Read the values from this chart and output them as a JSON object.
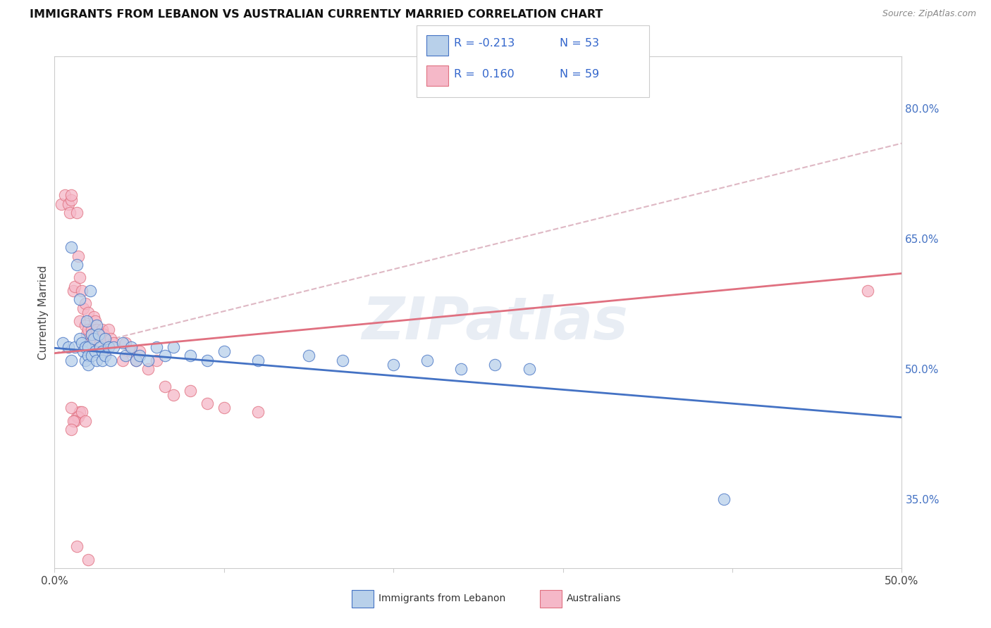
{
  "title": "IMMIGRANTS FROM LEBANON VS AUSTRALIAN CURRENTLY MARRIED CORRELATION CHART",
  "source": "Source: ZipAtlas.com",
  "ylabel": "Currently Married",
  "right_yticks": [
    "80.0%",
    "65.0%",
    "50.0%",
    "35.0%"
  ],
  "right_ytick_vals": [
    0.8,
    0.65,
    0.5,
    0.35
  ],
  "xlim": [
    0.0,
    0.5
  ],
  "ylim": [
    0.27,
    0.86
  ],
  "color_blue": "#b8d0ea",
  "color_pink": "#f5b8c8",
  "color_blue_line": "#4472c4",
  "color_pink_line": "#e07080",
  "watermark": "ZIPatlas",
  "blue_scatter_x": [
    0.005,
    0.008,
    0.01,
    0.01,
    0.012,
    0.013,
    0.015,
    0.015,
    0.016,
    0.017,
    0.018,
    0.018,
    0.019,
    0.02,
    0.02,
    0.02,
    0.021,
    0.022,
    0.022,
    0.023,
    0.024,
    0.025,
    0.025,
    0.026,
    0.027,
    0.028,
    0.028,
    0.03,
    0.03,
    0.032,
    0.033,
    0.035,
    0.04,
    0.042,
    0.045,
    0.048,
    0.05,
    0.055,
    0.06,
    0.065,
    0.07,
    0.08,
    0.09,
    0.1,
    0.12,
    0.15,
    0.17,
    0.2,
    0.22,
    0.24,
    0.26,
    0.395,
    0.28
  ],
  "blue_scatter_y": [
    0.53,
    0.525,
    0.64,
    0.51,
    0.525,
    0.62,
    0.58,
    0.535,
    0.53,
    0.52,
    0.525,
    0.51,
    0.555,
    0.525,
    0.515,
    0.505,
    0.59,
    0.54,
    0.515,
    0.535,
    0.52,
    0.55,
    0.51,
    0.54,
    0.525,
    0.52,
    0.51,
    0.535,
    0.515,
    0.525,
    0.51,
    0.525,
    0.53,
    0.515,
    0.525,
    0.51,
    0.515,
    0.51,
    0.525,
    0.515,
    0.525,
    0.515,
    0.51,
    0.52,
    0.51,
    0.515,
    0.51,
    0.505,
    0.51,
    0.5,
    0.505,
    0.35,
    0.5
  ],
  "pink_scatter_x": [
    0.004,
    0.006,
    0.008,
    0.009,
    0.01,
    0.01,
    0.011,
    0.012,
    0.013,
    0.014,
    0.015,
    0.015,
    0.016,
    0.017,
    0.018,
    0.018,
    0.019,
    0.02,
    0.02,
    0.021,
    0.022,
    0.022,
    0.023,
    0.024,
    0.025,
    0.026,
    0.027,
    0.028,
    0.029,
    0.03,
    0.03,
    0.032,
    0.033,
    0.035,
    0.04,
    0.042,
    0.045,
    0.048,
    0.05,
    0.055,
    0.06,
    0.065,
    0.07,
    0.08,
    0.09,
    0.1,
    0.12,
    0.015,
    0.013,
    0.01,
    0.014,
    0.012,
    0.016,
    0.018,
    0.011,
    0.01,
    0.013,
    0.02,
    0.48
  ],
  "pink_scatter_y": [
    0.69,
    0.7,
    0.69,
    0.68,
    0.695,
    0.7,
    0.59,
    0.595,
    0.68,
    0.63,
    0.605,
    0.555,
    0.59,
    0.57,
    0.55,
    0.575,
    0.54,
    0.565,
    0.545,
    0.53,
    0.545,
    0.54,
    0.56,
    0.555,
    0.545,
    0.54,
    0.53,
    0.545,
    0.54,
    0.535,
    0.52,
    0.545,
    0.535,
    0.53,
    0.51,
    0.53,
    0.52,
    0.51,
    0.52,
    0.5,
    0.51,
    0.48,
    0.47,
    0.475,
    0.46,
    0.455,
    0.45,
    0.45,
    0.445,
    0.455,
    0.445,
    0.44,
    0.45,
    0.44,
    0.44,
    0.43,
    0.295,
    0.28,
    0.59
  ],
  "blue_line_x": [
    0.0,
    0.5
  ],
  "blue_line_y": [
    0.524,
    0.444
  ],
  "pink_line_x": [
    0.0,
    0.5
  ],
  "pink_line_y": [
    0.518,
    0.61
  ],
  "dashed_line_x": [
    0.0,
    0.5
  ],
  "dashed_line_y": [
    0.518,
    0.76
  ]
}
